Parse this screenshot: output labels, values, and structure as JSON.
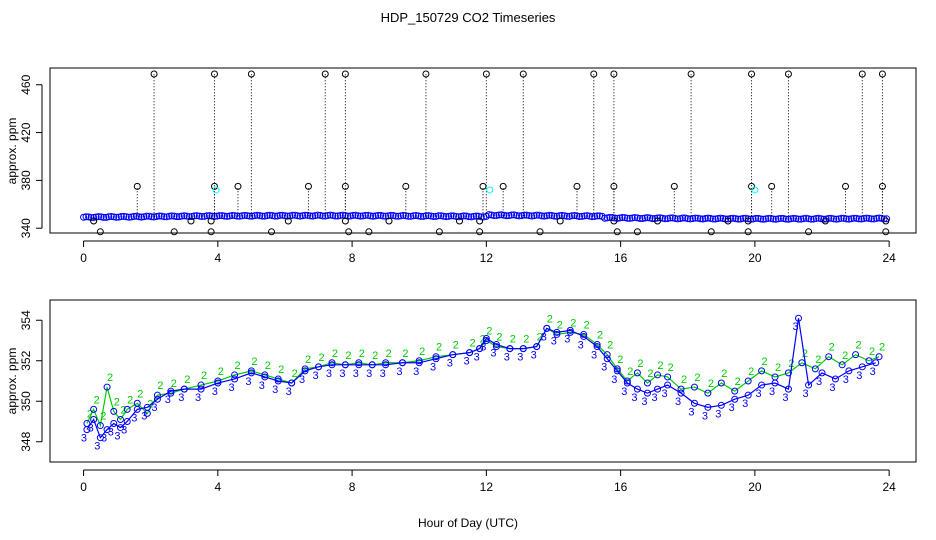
{
  "title": "HDP_150729  CO2 Timeseries",
  "xlabel": "Hour of Day (UTC)",
  "colors": {
    "raw": "#000000",
    "flag_cyan": "#00ffff",
    "series2": "#00cc00",
    "series3": "#0000ff",
    "frame": "#000000"
  },
  "chart_data": [
    {
      "type": "scatter",
      "panel": "top",
      "title": "HDP_150729  CO2 Timeseries",
      "ylabel": "approx. ppm",
      "xlim": [
        -1,
        24.8
      ],
      "ylim": [
        336,
        474
      ],
      "xticks": [
        0,
        4,
        8,
        12,
        16,
        20,
        24
      ],
      "xtick_labels": [
        "0",
        "4",
        "8",
        "12",
        "16",
        "20",
        "24"
      ],
      "yticks": [
        340,
        380,
        420,
        460
      ],
      "ytick_labels": [
        "340",
        "380",
        "420",
        "460"
      ],
      "spikes_high": {
        "y": 469,
        "x": [
          2.1,
          3.9,
          5.0,
          7.2,
          7.8,
          10.2,
          12.0,
          13.1,
          15.2,
          15.8,
          18.1,
          19.9,
          21.0,
          23.2,
          23.8
        ]
      },
      "spikes_mid": {
        "y": 375,
        "x": [
          1.6,
          3.9,
          4.6,
          6.7,
          7.8,
          9.6,
          11.9,
          12.5,
          14.7,
          15.8,
          17.6,
          19.9,
          20.5,
          22.7,
          23.8
        ]
      },
      "spikes_low": {
        "y": 337,
        "x": [
          0.5,
          2.7,
          3.8,
          5.6,
          7.9,
          8.5,
          10.6,
          11.8,
          13.6,
          15.9,
          16.5,
          18.7,
          19.8,
          21.6,
          23.9
        ]
      },
      "spikes_low2": {
        "y": 346,
        "x": [
          0.3,
          3.2,
          3.8,
          6.1,
          7.8,
          9.1,
          11.2,
          11.8,
          14.2,
          15.8,
          17.1,
          19.2,
          19.8,
          22.1,
          23.9
        ]
      },
      "cyan_points": {
        "x": [
          3.95,
          12.1,
          20.0
        ],
        "y": [
          372,
          372,
          372
        ]
      }
    },
    {
      "type": "line",
      "panel": "bottom",
      "ylabel": "approx. ppm",
      "xlim": [
        -1,
        24.8
      ],
      "ylim": [
        347,
        355
      ],
      "xticks": [
        0,
        4,
        8,
        12,
        16,
        20,
        24
      ],
      "xtick_labels": [
        "0",
        "4",
        "8",
        "12",
        "16",
        "20",
        "24"
      ],
      "yticks": [
        348,
        350,
        352,
        354
      ],
      "ytick_labels": [
        "348",
        "350",
        "352",
        "354"
      ],
      "marker_labels": [
        "2",
        "3"
      ],
      "series": [
        {
          "name": "2",
          "x": [
            0.1,
            0.3,
            0.5,
            0.7,
            0.9,
            1.1,
            1.3,
            1.6,
            1.9,
            2.2,
            2.6,
            3.0,
            3.5,
            4.0,
            4.5,
            5.0,
            5.4,
            5.8,
            6.2,
            6.6,
            7.0,
            7.4,
            7.8,
            8.2,
            8.6,
            9.0,
            9.5,
            10.0,
            10.5,
            11.0,
            11.5,
            11.8,
            12.0,
            12.3,
            12.7,
            13.1,
            13.5,
            13.8,
            14.1,
            14.5,
            14.9,
            15.3,
            15.6,
            15.9,
            16.2,
            16.5,
            16.8,
            17.1,
            17.4,
            17.8,
            18.2,
            18.6,
            19.0,
            19.4,
            19.8,
            20.2,
            20.6,
            21.0,
            21.4,
            21.8,
            22.2,
            22.6,
            23.0,
            23.4,
            23.7
          ],
          "y": [
            348.9,
            349.6,
            348.8,
            350.7,
            349.5,
            349.1,
            349.6,
            349.9,
            349.4,
            350.3,
            350.4,
            350.6,
            350.8,
            351.0,
            351.3,
            351.5,
            351.3,
            351.1,
            350.9,
            351.6,
            351.7,
            351.9,
            351.8,
            351.9,
            351.8,
            351.9,
            351.9,
            352.0,
            352.2,
            352.3,
            352.4,
            352.6,
            353.0,
            352.7,
            352.6,
            352.6,
            352.7,
            353.6,
            353.3,
            353.4,
            353.3,
            352.8,
            352.3,
            351.6,
            351.0,
            351.4,
            350.9,
            351.3,
            351.2,
            350.6,
            350.7,
            350.4,
            350.9,
            350.5,
            351.0,
            351.5,
            351.2,
            351.4,
            351.9,
            351.6,
            352.2,
            351.8,
            352.3,
            352.0,
            352.2
          ]
        },
        {
          "name": "3",
          "x": [
            0.1,
            0.3,
            0.5,
            0.7,
            0.9,
            1.1,
            1.3,
            1.6,
            1.9,
            2.2,
            2.6,
            3.0,
            3.5,
            4.0,
            4.5,
            5.0,
            5.4,
            5.8,
            6.2,
            6.6,
            7.0,
            7.4,
            7.8,
            8.2,
            8.6,
            9.0,
            9.5,
            10.0,
            10.5,
            11.0,
            11.5,
            11.8,
            12.0,
            12.3,
            12.7,
            13.1,
            13.5,
            13.8,
            14.1,
            14.5,
            14.9,
            15.3,
            15.6,
            15.9,
            16.2,
            16.5,
            16.8,
            17.1,
            17.4,
            17.8,
            18.2,
            18.6,
            19.0,
            19.4,
            19.8,
            20.2,
            20.6,
            21.0,
            21.3,
            21.6,
            22.0,
            22.4,
            22.8,
            23.2,
            23.6
          ],
          "y": [
            348.6,
            349.1,
            348.2,
            348.6,
            348.9,
            348.7,
            349.0,
            349.6,
            349.7,
            350.1,
            350.5,
            350.6,
            350.6,
            350.9,
            351.1,
            351.4,
            351.2,
            351.0,
            350.9,
            351.5,
            351.7,
            351.8,
            351.8,
            351.8,
            351.8,
            351.8,
            351.9,
            351.9,
            352.1,
            352.3,
            352.4,
            352.6,
            353.1,
            352.8,
            352.6,
            352.6,
            352.7,
            353.6,
            353.4,
            353.5,
            353.2,
            352.7,
            352.1,
            351.5,
            350.9,
            350.6,
            350.4,
            350.6,
            350.8,
            350.4,
            349.9,
            349.7,
            349.8,
            350.1,
            350.3,
            350.8,
            350.9,
            350.6,
            354.1,
            350.8,
            351.4,
            351.1,
            351.5,
            351.7,
            351.9
          ]
        }
      ]
    }
  ]
}
